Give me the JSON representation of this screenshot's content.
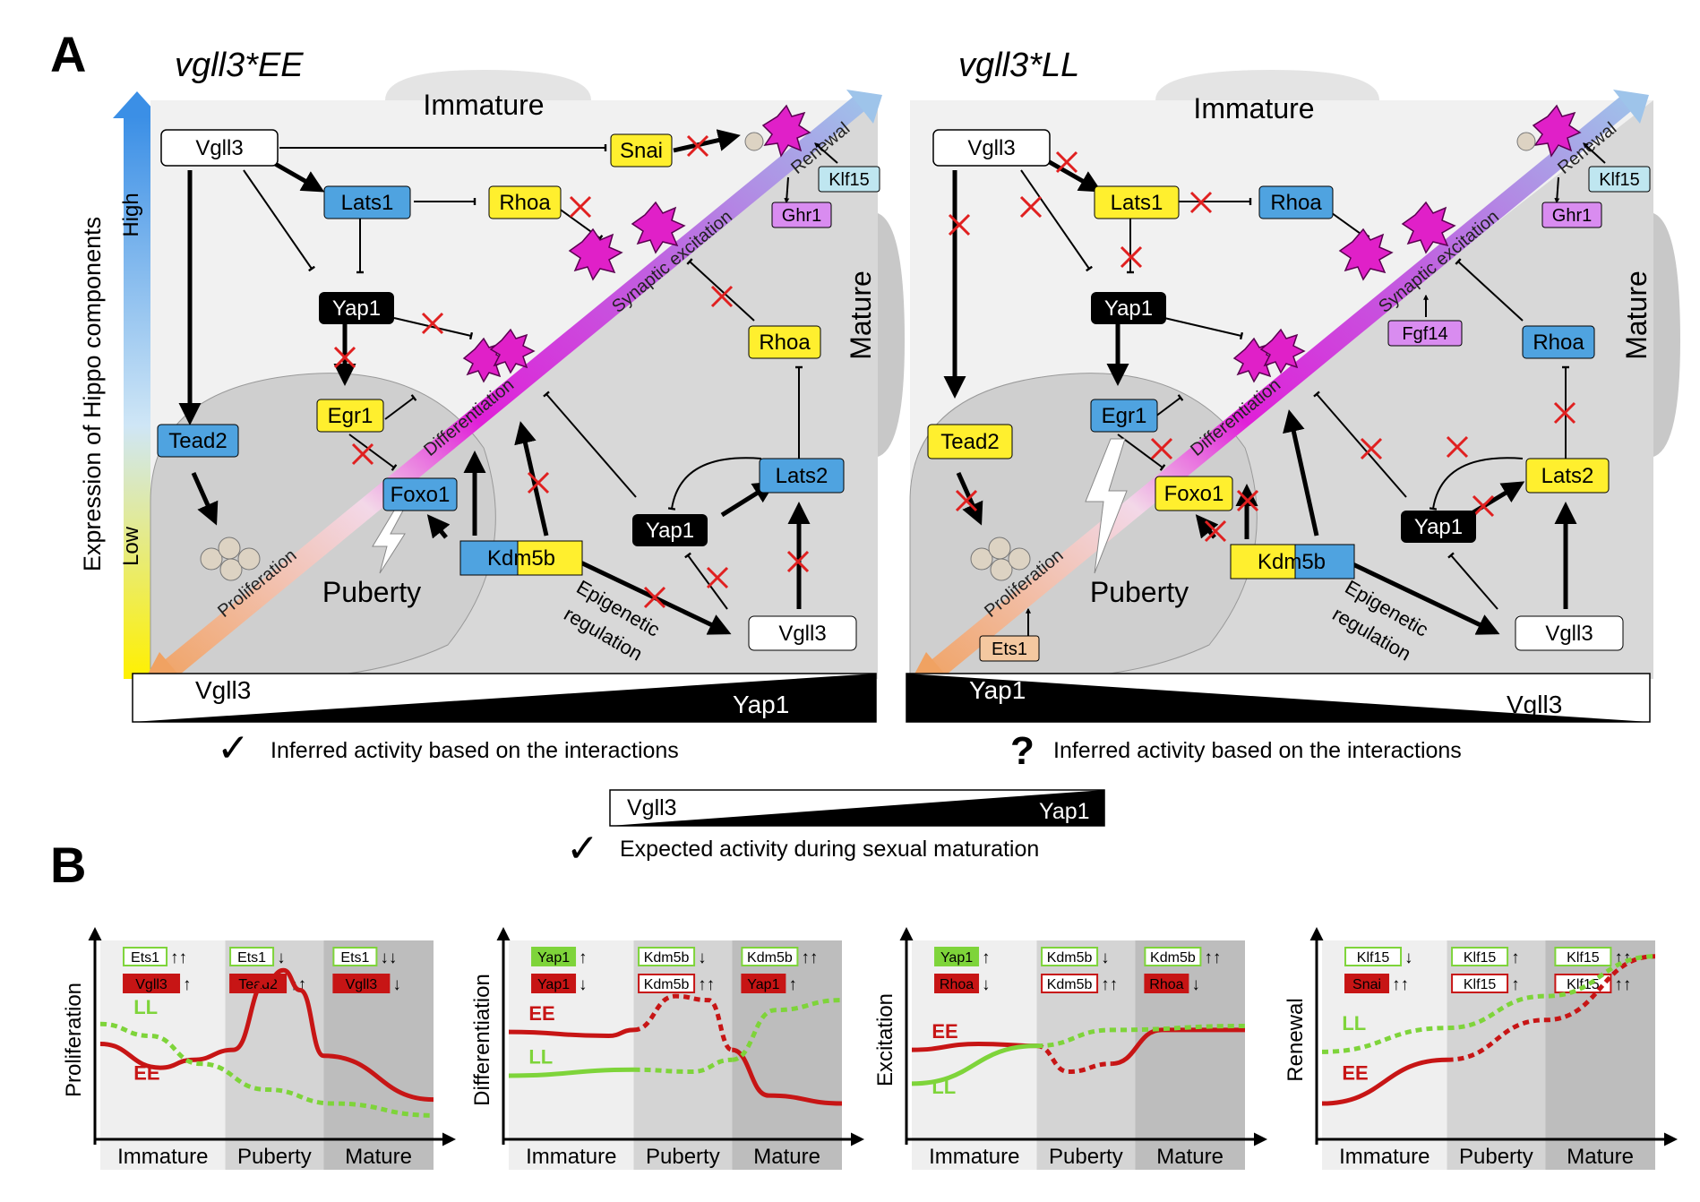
{
  "panelA": {
    "letter": "A",
    "left_title": "vgll3*EE",
    "right_title": "vgll3*LL",
    "y_axis_label": "Expression of Hippo components",
    "y_high": "High",
    "y_low": "Low",
    "immature": "Immature",
    "mature": "Mature",
    "puberty": "Puberty",
    "diag_labels": {
      "proliferation": "Proliferation",
      "differentiation": "Differentiation",
      "synaptic": "Synaptic excitation",
      "renewal": "Renewal"
    },
    "epigenetic_l1": "Epigenetic",
    "epigenetic_l2": "regulation",
    "left_bar": {
      "left": "Vgll3",
      "right": "Yap1"
    },
    "right_bar": {
      "left": "Yap1",
      "right": "Vgll3"
    },
    "left_caption": "Inferred activity based on the interactions",
    "right_caption": "Inferred activity based on the interactions",
    "check_mark": "✓",
    "question_mark": "?",
    "nodes": {
      "vgll3": "Vgll3",
      "lats1": "Lats1",
      "rhoa": "Rhoa",
      "snai": "Snai",
      "yap1": "Yap1",
      "egr1": "Egr1",
      "foxo1": "Foxo1",
      "tead2": "Tead2",
      "kdm5b": "Kdm5b",
      "lats2": "Lats2",
      "klf15": "Klf15",
      "ghr1": "Ghr1",
      "fgf14": "Fgf14",
      "ets1": "Ets1"
    }
  },
  "center": {
    "bar_left": "Vgll3",
    "bar_right": "Yap1",
    "caption": "Expected activity during sexual maturation"
  },
  "panelB": {
    "letter": "B",
    "stages": [
      "Immature",
      "Puberty",
      "Mature"
    ],
    "ee": "EE",
    "ll": "LL",
    "panels": [
      {
        "ylabel": "Proliferation",
        "tags": [
          [
            {
              "t": "Ets1",
              "s": "g"
            },
            {
              "a": "↑↑"
            }
          ],
          [
            {
              "t": "Ets1",
              "s": "g"
            },
            {
              "a": "↓"
            }
          ],
          [
            {
              "t": "Ets1",
              "s": "g"
            },
            {
              "a": "↓↓"
            }
          ],
          [
            {
              "t": "Vgll3",
              "s": "r"
            },
            {
              "a": "↑"
            }
          ],
          [
            {
              "t": "Tead2",
              "s": "r"
            },
            {
              "a": "↑↑"
            }
          ],
          [
            {
              "t": "Vgll3",
              "s": "r"
            },
            {
              "a": "↓"
            }
          ]
        ]
      },
      {
        "ylabel": "Differentiation",
        "tags": [
          [
            {
              "t": "Yap1",
              "s": "G"
            },
            {
              "a": "↑"
            }
          ],
          [
            {
              "t": "Kdm5b",
              "s": "g"
            },
            {
              "a": "↓"
            }
          ],
          [
            {
              "t": "Kdm5b",
              "s": "g"
            },
            {
              "a": "↑↑"
            }
          ],
          [
            {
              "t": "Yap1",
              "s": "r"
            },
            {
              "a": "↓"
            }
          ],
          [
            {
              "t": "Kdm5b",
              "s": "o"
            },
            {
              "a": "↑↑"
            }
          ],
          [
            {
              "t": "Yap1",
              "s": "r"
            },
            {
              "a": "↑"
            }
          ]
        ]
      },
      {
        "ylabel": "Excitation",
        "tags": [
          [
            {
              "t": "Yap1",
              "s": "G"
            },
            {
              "a": "↑"
            }
          ],
          [
            {
              "t": "Kdm5b",
              "s": "g"
            },
            {
              "a": "↓"
            }
          ],
          [
            {
              "t": "Kdm5b",
              "s": "g"
            },
            {
              "a": "↑↑"
            }
          ],
          [
            {
              "t": "Rhoa",
              "s": "r"
            },
            {
              "a": "↓"
            }
          ],
          [
            {
              "t": "Kdm5b",
              "s": "o"
            },
            {
              "a": "↑↑"
            }
          ],
          [
            {
              "t": "Rhoa",
              "s": "r"
            },
            {
              "a": "↓"
            }
          ]
        ]
      },
      {
        "ylabel": "Renewal",
        "tags": [
          [
            {
              "t": "Klf15",
              "s": "g"
            },
            {
              "a": "↓"
            }
          ],
          [
            {
              "t": "Klf15",
              "s": "g"
            },
            {
              "a": "↑"
            }
          ],
          [
            {
              "t": "Klf15",
              "s": "g"
            },
            {
              "a": "↑↑"
            }
          ],
          [
            {
              "t": "Snai",
              "s": "r"
            },
            {
              "a": "↑↑"
            }
          ],
          [
            {
              "t": "Klf15",
              "s": "o"
            },
            {
              "a": "↑"
            }
          ],
          [
            {
              "t": "Klf15",
              "s": "o"
            },
            {
              "a": "↑↑"
            }
          ]
        ]
      }
    ]
  },
  "colors": {
    "blue_node": "#4fa3e0",
    "yellow_node": "#ffef2e",
    "black_node": "#000000",
    "magenta_node": "#d98cf0",
    "teal_node": "#bfe6f0",
    "orange_node": "#f4c8a0",
    "ee_red": "#c71515",
    "ll_green": "#7ed43a",
    "bg_light": "#f1f1f1",
    "bg_mid": "#d6d6d6",
    "bg_dark": "#c0c0c0"
  }
}
